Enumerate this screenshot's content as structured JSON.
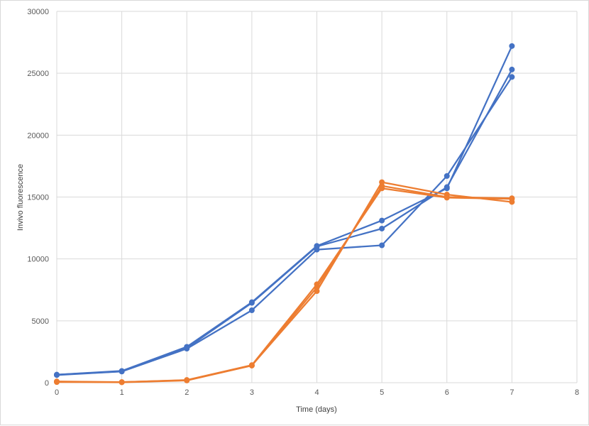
{
  "chart_data": {
    "type": "scatter",
    "mode": "lines+markers",
    "xlabel": "Time (days)",
    "ylabel": "Invivo fluorescence",
    "xlim": [
      0,
      8
    ],
    "ylim": [
      0,
      30000
    ],
    "xticks": [
      0,
      1,
      2,
      3,
      4,
      5,
      6,
      7,
      8
    ],
    "yticks": [
      0,
      5000,
      10000,
      15000,
      20000,
      25000,
      30000
    ],
    "grid": true,
    "legend": "none",
    "series": [
      {
        "color": "#4472c4",
        "x": [
          0,
          1,
          2,
          3,
          4,
          5,
          6,
          7
        ],
        "y": [
          650,
          950,
          2900,
          6500,
          11050,
          13100,
          15700,
          27200
        ]
      },
      {
        "color": "#4472c4",
        "x": [
          0,
          1,
          2,
          3,
          4,
          5,
          6,
          7
        ],
        "y": [
          620,
          900,
          2750,
          5850,
          10750,
          11100,
          16700,
          24700
        ]
      },
      {
        "color": "#4472c4",
        "x": [
          0,
          1,
          2,
          3,
          4,
          5,
          6,
          7
        ],
        "y": [
          640,
          920,
          2800,
          6450,
          11000,
          12450,
          15800,
          25300
        ]
      },
      {
        "color": "#ed7d31",
        "x": [
          0,
          1,
          2,
          3,
          4,
          5,
          6,
          7
        ],
        "y": [
          100,
          50,
          200,
          1400,
          7400,
          16200,
          15200,
          14600
        ]
      },
      {
        "color": "#ed7d31",
        "x": [
          0,
          1,
          2,
          3,
          4,
          5,
          6,
          7
        ],
        "y": [
          50,
          30,
          180,
          1380,
          7700,
          15900,
          15000,
          14900
        ]
      },
      {
        "color": "#ed7d31",
        "x": [
          0,
          1,
          2,
          3,
          4,
          5,
          6,
          7
        ],
        "y": [
          80,
          40,
          220,
          1420,
          7950,
          15700,
          14950,
          14850
        ]
      }
    ]
  }
}
